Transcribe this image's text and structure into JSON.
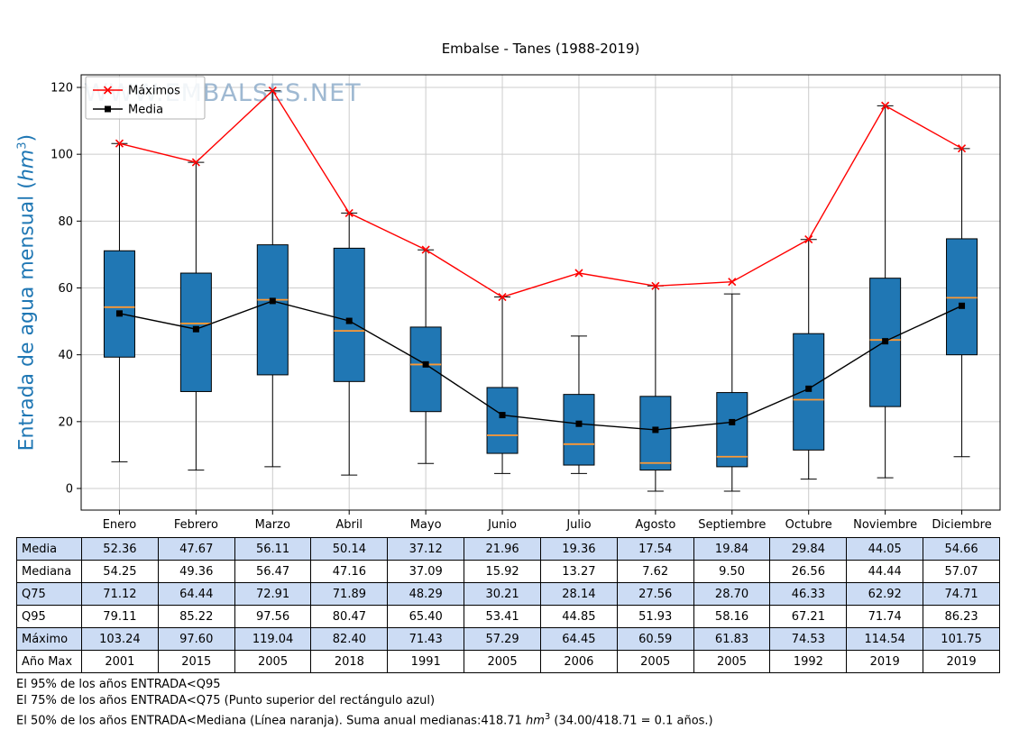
{
  "title": "Embalse - Tanes (1988-2019)",
  "watermark": {
    "text": "WWW.EMBALSES.NET",
    "color": "#87a8c7"
  },
  "ylabel": {
    "pre": "Entrada de agua mensual (",
    "unit": "hm",
    "sup": "3",
    "post": ")",
    "color": "#1f77b4"
  },
  "chart_data": {
    "type": "boxplot",
    "title": "Embalse - Tanes (1988-2019)",
    "ylabel_text": "Entrada de agua mensual (hm³)",
    "categories": [
      "Enero",
      "Febrero",
      "Marzo",
      "Abril",
      "Mayo",
      "Junio",
      "Julio",
      "Agosto",
      "Septiembre",
      "Octubre",
      "Noviembre",
      "Diciembre"
    ],
    "ylim": [
      0,
      120
    ],
    "yticks": [
      0,
      20,
      40,
      60,
      80,
      100,
      120
    ],
    "grid": true,
    "legend_position": "upper-left",
    "series": [
      {
        "name": "Máximos",
        "color": "#ff0000",
        "marker": "x",
        "values": [
          103.24,
          97.6,
          119.04,
          82.4,
          71.43,
          57.29,
          64.45,
          60.59,
          61.83,
          74.53,
          114.54,
          101.75
        ]
      },
      {
        "name": "Media",
        "color": "#000000",
        "marker": "square",
        "values": [
          52.36,
          47.67,
          56.11,
          50.14,
          37.12,
          21.96,
          19.36,
          17.54,
          19.84,
          29.84,
          44.05,
          54.66
        ]
      }
    ],
    "boxplot": {
      "q25": [
        39.3,
        29.0,
        34.0,
        32.0,
        23.0,
        10.5,
        7.0,
        5.5,
        6.5,
        11.5,
        24.5,
        40.0
      ],
      "median": [
        54.25,
        49.36,
        56.47,
        47.16,
        37.09,
        15.92,
        13.27,
        7.62,
        9.5,
        26.56,
        44.44,
        57.07
      ],
      "q75": [
        71.12,
        64.44,
        72.91,
        71.89,
        48.29,
        30.21,
        28.14,
        27.56,
        28.7,
        46.33,
        62.92,
        74.71
      ],
      "q95": [
        79.11,
        85.22,
        97.56,
        80.47,
        65.4,
        53.41,
        44.85,
        51.93,
        58.16,
        67.21,
        71.74,
        86.23
      ],
      "whisker_low": [
        8.0,
        5.5,
        6.5,
        4.0,
        7.5,
        4.5,
        4.5,
        -0.8,
        -0.8,
        2.8,
        3.2,
        9.5
      ],
      "whisker_high": [
        103.2,
        97.6,
        119.0,
        82.4,
        71.4,
        57.3,
        45.6,
        60.6,
        58.2,
        74.5,
        114.5,
        101.7
      ]
    },
    "colors": {
      "box_fill": "#2077b4",
      "box_edge": "#000000",
      "median_line": "#ff9933",
      "grid": "#cccccc"
    }
  },
  "table": {
    "row_headers": [
      "Media",
      "Mediana",
      "Q75",
      "Q95",
      "Máximo",
      "Año Max"
    ],
    "rows": [
      [
        "52.36",
        "47.67",
        "56.11",
        "50.14",
        "37.12",
        "21.96",
        "19.36",
        "17.54",
        "19.84",
        "29.84",
        "44.05",
        "54.66"
      ],
      [
        "54.25",
        "49.36",
        "56.47",
        "47.16",
        "37.09",
        "15.92",
        "13.27",
        "7.62",
        "9.50",
        "26.56",
        "44.44",
        "57.07"
      ],
      [
        "71.12",
        "64.44",
        "72.91",
        "71.89",
        "48.29",
        "30.21",
        "28.14",
        "27.56",
        "28.70",
        "46.33",
        "62.92",
        "74.71"
      ],
      [
        "79.11",
        "85.22",
        "97.56",
        "80.47",
        "65.40",
        "53.41",
        "44.85",
        "51.93",
        "58.16",
        "67.21",
        "71.74",
        "86.23"
      ],
      [
        "103.24",
        "97.60",
        "119.04",
        "82.40",
        "71.43",
        "57.29",
        "64.45",
        "60.59",
        "61.83",
        "74.53",
        "114.54",
        "101.75"
      ],
      [
        "2001",
        "2015",
        "2005",
        "2018",
        "1991",
        "2005",
        "2006",
        "2005",
        "2005",
        "1992",
        "2019",
        "2019"
      ]
    ],
    "alt_row_color": "#ccdcf4"
  },
  "footnotes": [
    {
      "pre": "El 95% de los años ENTRADA<Q95",
      "unit": "",
      "sup": "",
      "post": ""
    },
    {
      "pre": "El 75% de los años ENTRADA<Q75 (Punto superior del rectángulo azul)",
      "unit": "",
      "sup": "",
      "post": ""
    },
    {
      "pre": "El 50% de los años ENTRADA<Mediana (Línea naranja). Suma anual medianas:418.71 ",
      "unit": "hm",
      "sup": "3",
      "post": " (34.00/418.71 = 0.1 años.)"
    }
  ]
}
